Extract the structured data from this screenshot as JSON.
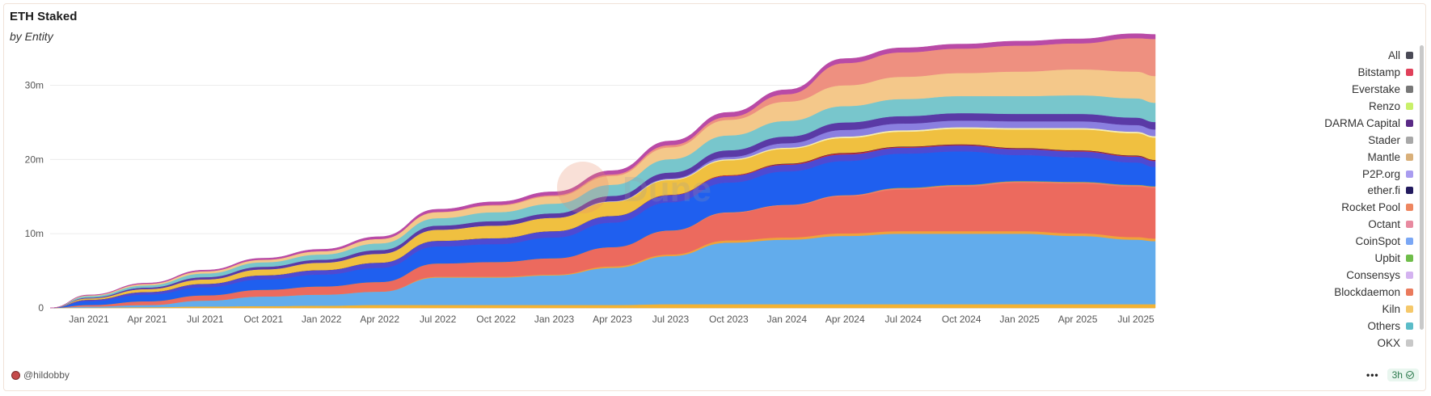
{
  "chart_data": {
    "type": "area",
    "stacked": true,
    "title": "ETH Staked",
    "subtitle": "by Entity",
    "xlabel": "",
    "ylabel": "",
    "ylim": [
      0,
      35500000
    ],
    "y_ticks": [
      0,
      10000000,
      20000000,
      30000000
    ],
    "y_tick_labels": [
      "0",
      "10m",
      "20m",
      "30m"
    ],
    "x_tick_labels": [
      "Jan 2021",
      "Apr 2021",
      "Jul 2021",
      "Oct 2021",
      "Jan 2022",
      "Apr 2022",
      "Jul 2022",
      "Oct 2022",
      "Jan 2023",
      "Apr 2023",
      "Jul 2023",
      "Oct 2023",
      "Jan 2024",
      "Apr 2024",
      "Jul 2024",
      "Oct 2024",
      "Jan 2025",
      "Apr 2025",
      "Jul 2025"
    ],
    "x_start": "2020-11",
    "x_end": "2025-08",
    "grid": true,
    "legend_position": "right",
    "x": [
      "2020-11",
      "2021-01",
      "2021-04",
      "2021-07",
      "2021-10",
      "2022-01",
      "2022-04",
      "2022-07",
      "2022-10",
      "2023-01",
      "2023-04",
      "2023-07",
      "2023-10",
      "2024-01",
      "2024-04",
      "2024-07",
      "2024-10",
      "2025-01",
      "2025-04",
      "2025-07",
      "2025-08"
    ],
    "series": [
      {
        "name": "OKX",
        "values": [
          0,
          0.05,
          0.1,
          0.2,
          0.25,
          0.3,
          0.4,
          0.4,
          0.4,
          0.4,
          0.4,
          0.5,
          0.5,
          0.5,
          0.5,
          0.5,
          0.5,
          0.5,
          0.5,
          0.5,
          0.5
        ]
      },
      {
        "name": "Others",
        "values": [
          0,
          0.15,
          0.3,
          0.8,
          1.3,
          1.5,
          1.8,
          3.7,
          3.7,
          4.0,
          5.0,
          6.5,
          8.3,
          8.7,
          9.2,
          9.5,
          9.5,
          9.5,
          9.2,
          8.7,
          8.5
        ]
      },
      {
        "name": "Kiln",
        "values": [
          0,
          0,
          0,
          0,
          0,
          0,
          0,
          0.1,
          0.1,
          0.1,
          0.2,
          0.2,
          0.3,
          0.3,
          0.35,
          0.35,
          0.35,
          0.35,
          0.35,
          0.35,
          0.35
        ]
      },
      {
        "name": "Blockdaemon",
        "values": [
          0,
          0.2,
          0.5,
          0.7,
          0.9,
          1.1,
          1.3,
          1.8,
          2.0,
          2.2,
          2.6,
          3.2,
          3.7,
          4.3,
          5.0,
          5.6,
          6.0,
          6.5,
          6.7,
          6.8,
          6.8
        ]
      },
      {
        "name": "Consensys",
        "values": [
          0,
          0,
          0,
          0,
          0,
          0,
          0,
          0,
          0,
          0,
          0,
          0.05,
          0.1,
          0.1,
          0.15,
          0.2,
          0.2,
          0.2,
          0.2,
          0.2,
          0.2
        ]
      },
      {
        "name": "Upbit",
        "values": [
          0,
          0,
          0,
          0,
          0,
          0,
          0,
          0,
          0,
          0,
          0,
          0,
          0,
          0,
          0,
          0.05,
          0.05,
          0.05,
          0.05,
          0.05,
          0.05
        ]
      },
      {
        "name": "CoinSpot",
        "values": [
          0,
          0.5,
          0.9,
          1.1,
          1.4,
          1.6,
          1.9,
          2.3,
          2.4,
          2.8,
          3.3,
          3.8,
          4.0,
          4.5,
          4.6,
          4.6,
          4.5,
          3.5,
          3.3,
          3.0,
          2.6
        ]
      },
      {
        "name": "Octant",
        "values": [
          0,
          0.2,
          0.35,
          0.45,
          0.55,
          0.6,
          0.7,
          0.75,
          0.8,
          0.85,
          0.9,
          0.95,
          0.9,
          0.9,
          0.9,
          0.8,
          0.8,
          0.8,
          0.8,
          0.8,
          0.8
        ]
      },
      {
        "name": "Rocket Pool",
        "values": [
          0,
          0,
          0,
          0,
          0,
          0,
          0,
          0,
          0,
          0,
          0,
          0.05,
          0.1,
          0.1,
          0.15,
          0.1,
          0.1,
          0.1,
          0.1,
          0.1,
          0.1
        ]
      },
      {
        "name": "ether.fi",
        "values": [
          0,
          0,
          0,
          0,
          0,
          0,
          0,
          0,
          0,
          0,
          0,
          0,
          0,
          0.05,
          0.05,
          0.05,
          0.05,
          0.05,
          0.05,
          0.05,
          0.05
        ]
      },
      {
        "name": "P2P.org",
        "values": [
          0,
          0.2,
          0.4,
          0.6,
          0.8,
          1.0,
          1.2,
          1.5,
          1.7,
          1.8,
          1.9,
          2.0,
          2.0,
          2.0,
          2.0,
          2.0,
          2.1,
          2.5,
          2.8,
          3.0,
          3.0
        ]
      },
      {
        "name": "Mantle",
        "values": [
          0,
          0,
          0,
          0,
          0,
          0,
          0,
          0,
          0,
          0,
          0.05,
          0.1,
          0.15,
          0.15,
          0.2,
          0.2,
          0.2,
          0.2,
          0.2,
          0.2,
          0.2
        ]
      },
      {
        "name": "Stader",
        "values": [
          0,
          0,
          0,
          0,
          0,
          0,
          0,
          0,
          0,
          0,
          0.05,
          0.1,
          0.3,
          0.6,
          0.9,
          0.9,
          0.9,
          0.9,
          0.9,
          0.9,
          0.9
        ]
      },
      {
        "name": "DARMA Capital",
        "values": [
          0,
          0.1,
          0.2,
          0.3,
          0.35,
          0.4,
          0.5,
          0.55,
          0.6,
          0.6,
          0.7,
          0.8,
          0.9,
          0.9,
          1.0,
          1.0,
          1.0,
          1.0,
          1.0,
          1.0,
          1.0
        ]
      },
      {
        "name": "Renzo",
        "values": [
          0,
          0.2,
          0.3,
          0.5,
          0.6,
          0.7,
          0.9,
          1.0,
          1.2,
          1.3,
          1.5,
          1.8,
          2.0,
          2.1,
          2.2,
          2.3,
          2.3,
          2.4,
          2.5,
          2.6,
          2.6
        ]
      },
      {
        "name": "Everstake",
        "values": [
          0,
          0.1,
          0.2,
          0.3,
          0.35,
          0.45,
          0.6,
          0.8,
          0.9,
          1.0,
          1.2,
          1.6,
          2.1,
          2.6,
          2.8,
          3.0,
          3.1,
          3.3,
          3.5,
          3.6,
          3.6
        ]
      },
      {
        "name": "Bitstamp",
        "values": [
          0,
          0,
          0,
          0,
          0,
          0,
          0,
          0.05,
          0.1,
          0.15,
          0.2,
          0.3,
          0.4,
          1.0,
          3.0,
          3.3,
          3.3,
          3.5,
          3.5,
          4.5,
          5.0
        ]
      },
      {
        "name": "All",
        "values": [
          0,
          0.05,
          0.1,
          0.15,
          0.2,
          0.25,
          0.3,
          0.35,
          0.4,
          0.45,
          0.5,
          0.55,
          0.6,
          0.6,
          0.6,
          0.6,
          0.6,
          0.6,
          0.6,
          0.6,
          0.6
        ]
      }
    ]
  },
  "legend": [
    {
      "label": "All",
      "color": "#4a4a56"
    },
    {
      "label": "Bitstamp",
      "color": "#e0405a"
    },
    {
      "label": "Everstake",
      "color": "#777777"
    },
    {
      "label": "Renzo",
      "color": "#c9f06a"
    },
    {
      "label": "DARMA Capital",
      "color": "#5a2a86"
    },
    {
      "label": "Stader",
      "color": "#a8a8a8"
    },
    {
      "label": "Mantle",
      "color": "#d9b07a"
    },
    {
      "label": "P2P.org",
      "color": "#a99cf0"
    },
    {
      "label": "ether.fi",
      "color": "#221a5e"
    },
    {
      "label": "Rocket Pool",
      "color": "#ee8660"
    },
    {
      "label": "Octant",
      "color": "#e88aa0"
    },
    {
      "label": "CoinSpot",
      "color": "#7aa7f5"
    },
    {
      "label": "Upbit",
      "color": "#6fbd4a"
    },
    {
      "label": "Consensys",
      "color": "#d4b3f0"
    },
    {
      "label": "Blockdaemon",
      "color": "#ea7a5c"
    },
    {
      "label": "Kiln",
      "color": "#f5c86a"
    },
    {
      "label": "Others",
      "color": "#5bbcc8"
    },
    {
      "label": "OKX",
      "color": "#c8c8c8"
    }
  ],
  "stack_colors": {
    "OKX": "#f2b233",
    "Others": "#62acec",
    "Kiln": "#f0a23a",
    "Blockdaemon": "#ec6a5e",
    "Consensys": "#ef7c6a",
    "Upbit": "#6fbd4a",
    "CoinSpot": "#1f5fef",
    "Octant": "#4e4ad2",
    "Rocket Pool": "#d82a2a",
    "ether.fi": "#221a5e",
    "P2P.org": "#f0c040",
    "Mantle": "#f6eeb0",
    "Stader": "#8a7fe0",
    "DARMA Capital": "#5a3aa6",
    "Renzo": "#78c6cc",
    "Everstake": "#f4c88a",
    "Bitstamp": "#ee9080",
    "All": "#b94aa6"
  },
  "author": "@hildobby",
  "refresh_label": "3h",
  "more_label": "•••",
  "watermark": "Dune"
}
